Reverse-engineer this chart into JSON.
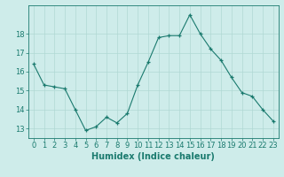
{
  "x": [
    0,
    1,
    2,
    3,
    4,
    5,
    6,
    7,
    8,
    9,
    10,
    11,
    12,
    13,
    14,
    15,
    16,
    17,
    18,
    19,
    20,
    21,
    22,
    23
  ],
  "y": [
    16.4,
    15.3,
    15.2,
    15.1,
    14.0,
    12.9,
    13.1,
    13.6,
    13.3,
    13.8,
    15.3,
    16.5,
    17.8,
    17.9,
    17.9,
    19.0,
    18.0,
    17.2,
    16.6,
    15.7,
    14.9,
    14.7,
    14.0,
    13.4
  ],
  "xlabel": "Humidex (Indice chaleur)",
  "ylim": [
    12.5,
    19.5
  ],
  "yticks": [
    13,
    14,
    15,
    16,
    17,
    18
  ],
  "xticks": [
    0,
    1,
    2,
    3,
    4,
    5,
    6,
    7,
    8,
    9,
    10,
    11,
    12,
    13,
    14,
    15,
    16,
    17,
    18,
    19,
    20,
    21,
    22,
    23
  ],
  "line_color": "#1a7a6e",
  "marker": "+",
  "marker_size": 3.5,
  "bg_color": "#ceecea",
  "grid_color": "#b0d8d4",
  "axis_color": "#1a7a6e",
  "tick_fontsize": 6.0,
  "xlabel_fontsize": 7.0
}
